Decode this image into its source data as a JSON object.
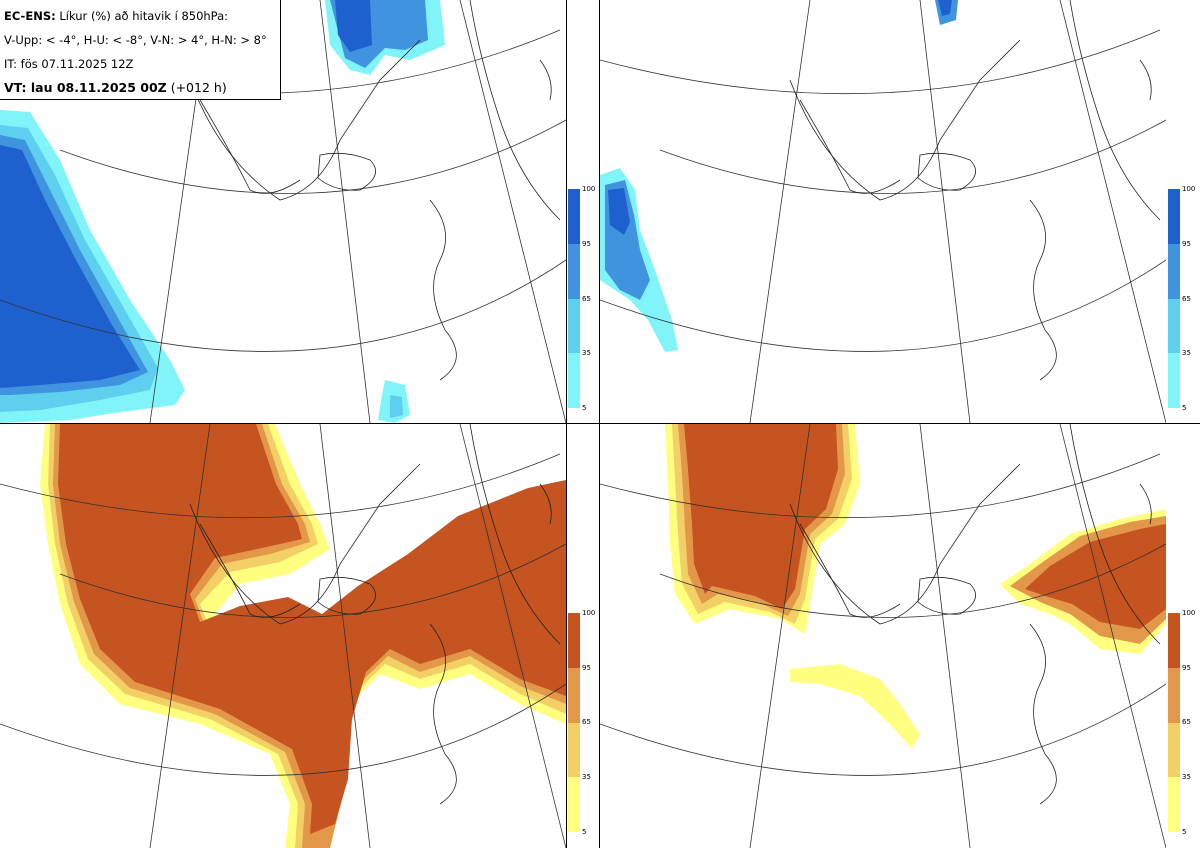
{
  "header": {
    "title_bold": "EC-ENS:",
    "title_rest": " Líkur (%) að hitavik í 850hPa:",
    "criteria": "V-Upp: < -4°, H-U: < -8°, V-N: > 4°, H-N: > 8°",
    "init_time": "IT: fös 07.11.2025 12Z",
    "valid_bold": "VT: lau 08.11.2025 00Z",
    "valid_rest": " (+012 h)"
  },
  "panels": [
    {
      "id": "V-Upp",
      "palette": "blue",
      "colors": {
        "5": "#80f4f8",
        "35": "#5ecfee",
        "65": "#3f93df",
        "95": "#1f60cf"
      }
    },
    {
      "id": "H-U",
      "palette": "blue",
      "colors": {
        "5": "#80f4f8",
        "35": "#5ecfee",
        "65": "#3f93df",
        "95": "#1f60cf"
      }
    },
    {
      "id": "V-N",
      "palette": "orange",
      "colors": {
        "5": "#ffff80",
        "35": "#f2d066",
        "65": "#e39748",
        "95": "#c55421"
      }
    },
    {
      "id": "H-N",
      "palette": "orange",
      "colors": {
        "5": "#ffff80",
        "35": "#f2d066",
        "65": "#e39748",
        "95": "#c55421"
      }
    }
  ],
  "colorbar_ticks": [
    "5",
    "35",
    "65",
    "95",
    "100"
  ]
}
